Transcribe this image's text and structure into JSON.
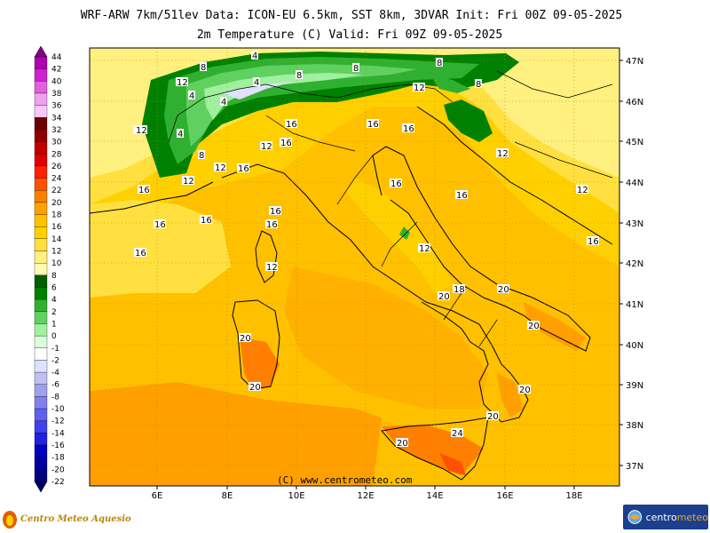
{
  "header": {
    "line1": "WRF-ARW 7km/51lev  Data: ICON-EU 6.5km, SST 8km, 3DVAR  Init: Fri 00Z 09-05-2025",
    "line2": "2m Temperature (C)  Valid: Fri 09Z 09-05-2025"
  },
  "colorbar": {
    "labels": [
      "44",
      "42",
      "40",
      "38",
      "36",
      "34",
      "32",
      "30",
      "28",
      "26",
      "24",
      "22",
      "20",
      "18",
      "16",
      "14",
      "12",
      "10",
      "8",
      "6",
      "4",
      "2",
      "1",
      "0",
      "-1",
      "-2",
      "-4",
      "-6",
      "-8",
      "-10",
      "-12",
      "-14",
      "-16",
      "-18",
      "-20",
      "-22"
    ],
    "colors": [
      "#8a008a",
      "#b000b0",
      "#d020d0",
      "#e060e0",
      "#f0a0f0",
      "#f8c8f8",
      "#6a0000",
      "#900000",
      "#c00000",
      "#e00000",
      "#ff2000",
      "#ff5000",
      "#ff8000",
      "#ffa000",
      "#ffc000",
      "#ffd000",
      "#ffe040",
      "#fff080",
      "#fffcb0",
      "#006000",
      "#008000",
      "#30b030",
      "#60d060",
      "#a0f0a0",
      "#d8ffd8",
      "#ffffff",
      "#e0e0ff",
      "#c0c0f0",
      "#a0a0f0",
      "#8080f0",
      "#6060f0",
      "#4040f0",
      "#2020e0",
      "#0000c0",
      "#0000a0",
      "#000080",
      "#000060"
    ]
  },
  "map": {
    "latitudes": [
      "47N",
      "46N",
      "45N",
      "44N",
      "43N",
      "42N",
      "41N",
      "40N",
      "39N",
      "38N",
      "37N"
    ],
    "longitudes": [
      "6E",
      "8E",
      "10E",
      "12E",
      "14E",
      "16E",
      "18E"
    ],
    "contour_labels": [
      "12",
      "12",
      "8",
      "4",
      "4",
      "4",
      "8",
      "4",
      "8",
      "12",
      "8",
      "8",
      "16",
      "16",
      "16",
      "12",
      "12",
      "12",
      "4",
      "8",
      "12",
      "16",
      "16",
      "16",
      "16",
      "16",
      "16",
      "16",
      "16",
      "16",
      "12",
      "12",
      "16",
      "12",
      "16",
      "12",
      "18",
      "20",
      "20",
      "20",
      "20",
      "20",
      "20",
      "20",
      "20",
      "24"
    ],
    "copyright": "(C) www.centrometeo.com"
  },
  "footer": {
    "left_brand": "Centro Meteo Aquesio",
    "right_brand_a": "centro",
    "right_brand_b": "meteo"
  }
}
